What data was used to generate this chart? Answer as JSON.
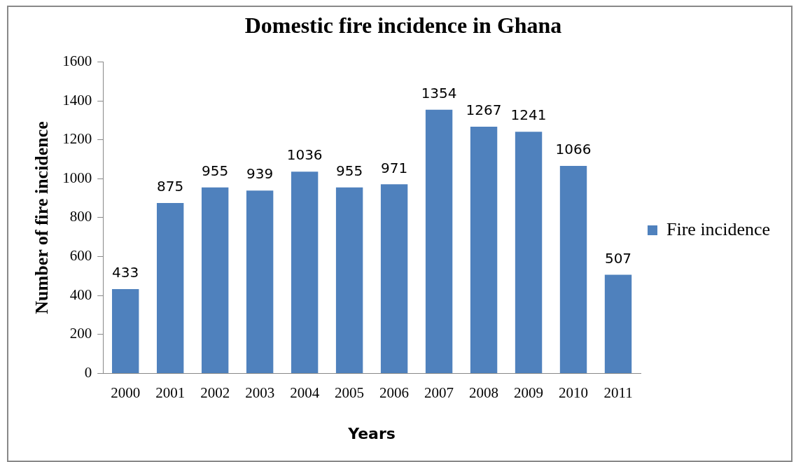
{
  "chart_data": {
    "type": "bar",
    "title": "Domestic fire incidence in Ghana",
    "xlabel": "Years",
    "ylabel": "Number of fire incidence",
    "categories": [
      "2000",
      "2001",
      "2002",
      "2003",
      "2004",
      "2005",
      "2006",
      "2007",
      "2008",
      "2009",
      "2010",
      "2011"
    ],
    "series": [
      {
        "name": "Fire incidence",
        "color": "#4f81bd",
        "values": [
          433,
          875,
          955,
          939,
          1036,
          955,
          971,
          1354,
          1267,
          1241,
          1066,
          507
        ]
      }
    ],
    "ylim": [
      0,
      1600
    ],
    "yticks": [
      0,
      200,
      400,
      600,
      800,
      1000,
      1200,
      1400,
      1600
    ],
    "grid": false,
    "legend": "right",
    "data_labels": true
  }
}
